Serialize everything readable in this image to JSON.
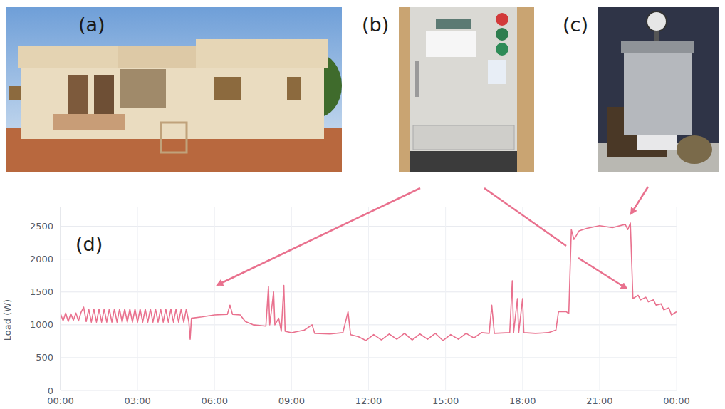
{
  "chart_data": {
    "type": "line",
    "y_label": "Load (W)",
    "annotations": [
      "(a)",
      "(b)",
      "(c)",
      "(d)"
    ],
    "x": [
      0,
      0.1,
      0.2,
      0.3,
      0.4,
      0.5,
      0.6,
      0.7,
      0.8,
      0.9,
      1.0,
      1.1,
      1.2,
      1.3,
      1.4,
      1.5,
      1.6,
      1.7,
      1.8,
      1.9,
      2.0,
      2.1,
      2.2,
      2.3,
      2.4,
      2.5,
      2.6,
      2.7,
      2.8,
      2.9,
      3.0,
      3.1,
      3.2,
      3.3,
      3.4,
      3.5,
      3.6,
      3.7,
      3.8,
      3.9,
      4.0,
      4.1,
      4.2,
      4.3,
      4.4,
      4.5,
      4.6,
      4.7,
      4.8,
      4.9,
      5.0,
      5.05,
      5.1,
      5.5,
      6.0,
      6.5,
      6.6,
      6.7,
      7.0,
      7.2,
      7.5,
      8.0,
      8.1,
      8.15,
      8.3,
      8.35,
      8.5,
      8.6,
      8.7,
      8.75,
      9.0,
      9.5,
      9.8,
      9.9,
      10.5,
      11.0,
      11.2,
      11.3,
      11.6,
      11.9,
      12.2,
      12.5,
      12.8,
      13.1,
      13.4,
      13.7,
      14.0,
      14.3,
      14.6,
      14.9,
      15.2,
      15.5,
      15.8,
      16.1,
      16.4,
      16.7,
      16.8,
      16.9,
      17.5,
      17.6,
      17.65,
      17.8,
      17.85,
      18.0,
      18.05,
      18.5,
      19.0,
      19.3,
      19.4,
      19.7,
      19.8,
      19.9,
      20.0,
      20.2,
      20.5,
      21.0,
      21.5,
      22.0,
      22.1,
      22.2,
      22.3,
      22.5,
      22.6,
      22.8,
      22.9,
      23.1,
      23.2,
      23.4,
      23.5,
      23.7,
      23.8,
      24.0
    ],
    "series": [
      {
        "color": "#e9718e",
        "values": [
          1170,
          1060,
          1180,
          1050,
          1170,
          1070,
          1180,
          1060,
          1190,
          1270,
          1050,
          1240,
          1040,
          1240,
          1040,
          1240,
          1040,
          1240,
          1040,
          1240,
          1040,
          1240,
          1040,
          1240,
          1040,
          1240,
          1040,
          1240,
          1040,
          1240,
          1040,
          1240,
          1040,
          1240,
          1040,
          1240,
          1040,
          1240,
          1040,
          1240,
          1040,
          1240,
          1040,
          1240,
          1040,
          1240,
          1040,
          1240,
          1040,
          1240,
          1040,
          780,
          1100,
          1120,
          1150,
          1160,
          1300,
          1160,
          1150,
          1050,
          1000,
          980,
          1580,
          1000,
          1500,
          1000,
          1100,
          900,
          1600,
          900,
          880,
          920,
          1000,
          870,
          860,
          880,
          1200,
          850,
          820,
          760,
          850,
          770,
          860,
          780,
          870,
          770,
          860,
          780,
          870,
          760,
          850,
          780,
          870,
          800,
          880,
          870,
          1300,
          870,
          880,
          1670,
          880,
          1400,
          880,
          1400,
          880,
          870,
          880,
          920,
          1200,
          1200,
          1170,
          2450,
          2300,
          2430,
          2470,
          2510,
          2480,
          2530,
          2450,
          2550,
          1400,
          1450,
          1380,
          1420,
          1350,
          1380,
          1300,
          1320,
          1230,
          1260,
          1150,
          1200
        ]
      }
    ],
    "xlim": [
      0,
      24
    ],
    "ylim": [
      0,
      2800
    ],
    "xticks": [
      {
        "value": 0,
        "label": "00:00"
      },
      {
        "value": 3,
        "label": "03:00"
      },
      {
        "value": 6,
        "label": "06:00"
      },
      {
        "value": 9,
        "label": "09:00"
      },
      {
        "value": 12,
        "label": "12:00"
      },
      {
        "value": 15,
        "label": "15:00"
      },
      {
        "value": 18,
        "label": "18:00"
      },
      {
        "value": 21,
        "label": "21:00"
      },
      {
        "value": 24,
        "label": "00:00"
      }
    ],
    "yticks": [
      0,
      500,
      1000,
      1500,
      2000,
      2500
    ],
    "grid": true
  }
}
